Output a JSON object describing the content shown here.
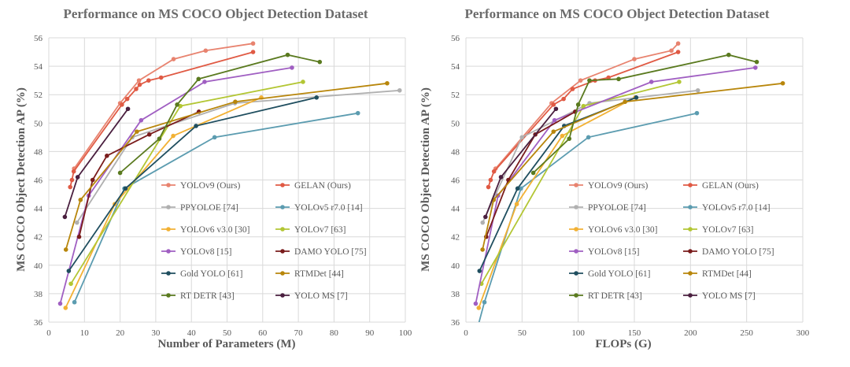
{
  "chart_data": [
    {
      "type": "line",
      "title": "Performance on MS COCO Object Detection Dataset",
      "xlabel": "Number of Parameters (M)",
      "ylabel": "MS COCO Object Detection AP (%)",
      "xlim": [
        0,
        100
      ],
      "ylim": [
        36,
        56
      ],
      "xticks": [
        0,
        10,
        20,
        30,
        40,
        50,
        60,
        70,
        80,
        90,
        100
      ],
      "yticks": [
        36,
        38,
        40,
        42,
        44,
        46,
        48,
        50,
        52,
        54,
        56
      ],
      "grid": true,
      "legend_position": "bottom-right",
      "series": [
        {
          "name": "YOLOv9 (Ours)",
          "color": "#e8836f",
          "points": [
            [
              7.1,
              46.8
            ],
            [
              20.0,
              51.4
            ],
            [
              25.3,
              53.0
            ],
            [
              35,
              54.5
            ],
            [
              44,
              55.1
            ],
            [
              57.3,
              55.6
            ]
          ]
        },
        {
          "name": "GELAN (Ours)",
          "color": "#e05a44",
          "points": [
            [
              6.0,
              45.5
            ],
            [
              6.5,
              46.0
            ],
            [
              7.0,
              46.6
            ],
            [
              20.5,
              51.3
            ],
            [
              22.0,
              51.7
            ],
            [
              24.5,
              52.4
            ],
            [
              25.5,
              52.7
            ],
            [
              28.0,
              53.0
            ],
            [
              31.5,
              53.2
            ],
            [
              57.3,
              55.0
            ]
          ]
        },
        {
          "name": "PPYOLOE [74]",
          "color": "#b0b0b0",
          "points": [
            [
              7.9,
              43.0
            ],
            [
              23.4,
              49.0
            ],
            [
              52.2,
              51.4
            ],
            [
              98.4,
              52.3
            ]
          ]
        },
        {
          "name": "YOLOv5 r7.0 [14]",
          "color": "#5c9cb0",
          "points": [
            [
              7.2,
              37.4
            ],
            [
              21.2,
              45.4
            ],
            [
              46.5,
              49.0
            ],
            [
              86.7,
              50.7
            ]
          ]
        },
        {
          "name": "YOLOv6 v3.0 [30]",
          "color": "#f2b134",
          "points": [
            [
              4.7,
              37.0
            ],
            [
              18.5,
              44.3
            ],
            [
              34.9,
              49.1
            ],
            [
              59.6,
              51.8
            ]
          ]
        },
        {
          "name": "YOLOv7 [63]",
          "color": "#b3c634",
          "points": [
            [
              6.2,
              38.7
            ],
            [
              36.9,
              51.2
            ],
            [
              71.3,
              52.9
            ]
          ]
        },
        {
          "name": "YOLOv8 [15]",
          "color": "#a05fc2",
          "points": [
            [
              3.2,
              37.3
            ],
            [
              11.2,
              44.9
            ],
            [
              25.9,
              50.2
            ],
            [
              43.7,
              52.9
            ],
            [
              68.2,
              53.9
            ]
          ]
        },
        {
          "name": "DAMO YOLO [75]",
          "color": "#7a1c1c",
          "points": [
            [
              8.5,
              42.0
            ],
            [
              12.3,
              46.0
            ],
            [
              16.3,
              47.7
            ],
            [
              28.2,
              49.2
            ],
            [
              42.1,
              50.8
            ]
          ]
        },
        {
          "name": "Gold YOLO [61]",
          "color": "#1f4e5f",
          "points": [
            [
              5.6,
              39.6
            ],
            [
              21.5,
              45.4
            ],
            [
              41.3,
              49.8
            ],
            [
              75.1,
              51.8
            ]
          ]
        },
        {
          "name": "RTMDet [44]",
          "color": "#b8860b",
          "points": [
            [
              4.8,
              41.1
            ],
            [
              8.9,
              44.6
            ],
            [
              24.7,
              49.4
            ],
            [
              52.3,
              51.5
            ],
            [
              94.9,
              52.8
            ]
          ]
        },
        {
          "name": "RT DETR [43]",
          "color": "#5a7a1f",
          "points": [
            [
              20.0,
              46.5
            ],
            [
              31.0,
              48.9
            ],
            [
              36.0,
              51.3
            ],
            [
              42.0,
              53.1
            ],
            [
              67.0,
              54.8
            ],
            [
              76.0,
              54.3
            ]
          ]
        },
        {
          "name": "YOLO MS [7]",
          "color": "#4a1f3f",
          "points": [
            [
              4.5,
              43.4
            ],
            [
              8.1,
              46.2
            ],
            [
              22.2,
              51.0
            ]
          ]
        }
      ]
    },
    {
      "type": "line",
      "title": "Performance on MS COCO Object Detection Dataset",
      "xlabel": "FLOPs (G)",
      "ylabel": "MS COCO Object Detection AP (%)",
      "xlim": [
        0,
        300
      ],
      "ylim": [
        36,
        56
      ],
      "xticks": [
        0,
        50,
        100,
        150,
        200,
        250,
        300
      ],
      "yticks": [
        36,
        38,
        40,
        42,
        44,
        46,
        48,
        50,
        52,
        54,
        56
      ],
      "grid": true,
      "legend_position": "bottom-right",
      "series": [
        {
          "name": "YOLOv9 (Ours)",
          "color": "#e8836f",
          "points": [
            [
              26.4,
              46.8
            ],
            [
              76.3,
              51.4
            ],
            [
              102.1,
              53.0
            ],
            [
              150,
              54.5
            ],
            [
              183,
              55.1
            ],
            [
              189,
              55.6
            ]
          ]
        },
        {
          "name": "GELAN (Ours)",
          "color": "#e05a44",
          "points": [
            [
              20,
              45.5
            ],
            [
              22,
              46.0
            ],
            [
              25,
              46.6
            ],
            [
              78,
              51.3
            ],
            [
              87,
              51.7
            ],
            [
              95,
              52.4
            ],
            [
              115,
              53.0
            ],
            [
              127,
              53.2
            ],
            [
              189,
              55.0
            ]
          ]
        },
        {
          "name": "PPYOLOE [74]",
          "color": "#b0b0b0",
          "points": [
            [
              14.9,
              43.0
            ],
            [
              49.9,
              49.0
            ],
            [
              110.1,
              51.4
            ],
            [
              206.6,
              52.3
            ]
          ]
        },
        {
          "name": "YOLOv5 r7.0 [14]",
          "color": "#5c9cb0",
          "points": [
            [
              10,
              35.5
            ],
            [
              16.5,
              37.4
            ],
            [
              49.0,
              45.4
            ],
            [
              109.1,
              49.0
            ],
            [
              205.7,
              50.7
            ]
          ]
        },
        {
          "name": "YOLOv6 v3.0 [30]",
          "color": "#f2b134",
          "points": [
            [
              11.4,
              37.0
            ],
            [
              45.3,
              44.3
            ],
            [
              85.8,
              49.1
            ],
            [
              150.7,
              51.8
            ]
          ]
        },
        {
          "name": "YOLOv7 [63]",
          "color": "#b3c634",
          "points": [
            [
              13.8,
              38.7
            ],
            [
              104.7,
              51.2
            ],
            [
              189.9,
              52.9
            ]
          ]
        },
        {
          "name": "YOLOv8 [15]",
          "color": "#a05fc2",
          "points": [
            [
              8.7,
              37.3
            ],
            [
              28.6,
              44.9
            ],
            [
              78.9,
              50.2
            ],
            [
              165.2,
              52.9
            ],
            [
              257.8,
              53.9
            ]
          ]
        },
        {
          "name": "DAMO YOLO [75]",
          "color": "#7a1c1c",
          "points": [
            [
              18.1,
              42.0
            ],
            [
              37.8,
              46.0
            ],
            [
              61.8,
              49.2
            ],
            [
              97.3,
              50.8
            ]
          ]
        },
        {
          "name": "Gold YOLO [61]",
          "color": "#1f4e5f",
          "points": [
            [
              12.1,
              39.6
            ],
            [
              46.0,
              45.4
            ],
            [
              87.5,
              49.8
            ],
            [
              151.7,
              51.8
            ]
          ]
        },
        {
          "name": "RTMDet [44]",
          "color": "#b8860b",
          "points": [
            [
              14.8,
              41.1
            ],
            [
              24.7,
              44.6
            ],
            [
              78.0,
              49.4
            ],
            [
              141.7,
              51.5
            ],
            [
              282.2,
              52.8
            ]
          ]
        },
        {
          "name": "RT DETR [43]",
          "color": "#5a7a1f",
          "points": [
            [
              60,
              46.5
            ],
            [
              92,
              48.9
            ],
            [
              100,
              51.3
            ],
            [
              110,
              53.0
            ],
            [
              136,
              53.1
            ],
            [
              234,
              54.8
            ],
            [
              259,
              54.3
            ]
          ]
        },
        {
          "name": "YOLO MS [7]",
          "color": "#4a1f3f",
          "points": [
            [
              17.4,
              43.4
            ],
            [
              31.2,
              46.2
            ],
            [
              80.2,
              51.0
            ]
          ]
        }
      ]
    }
  ]
}
